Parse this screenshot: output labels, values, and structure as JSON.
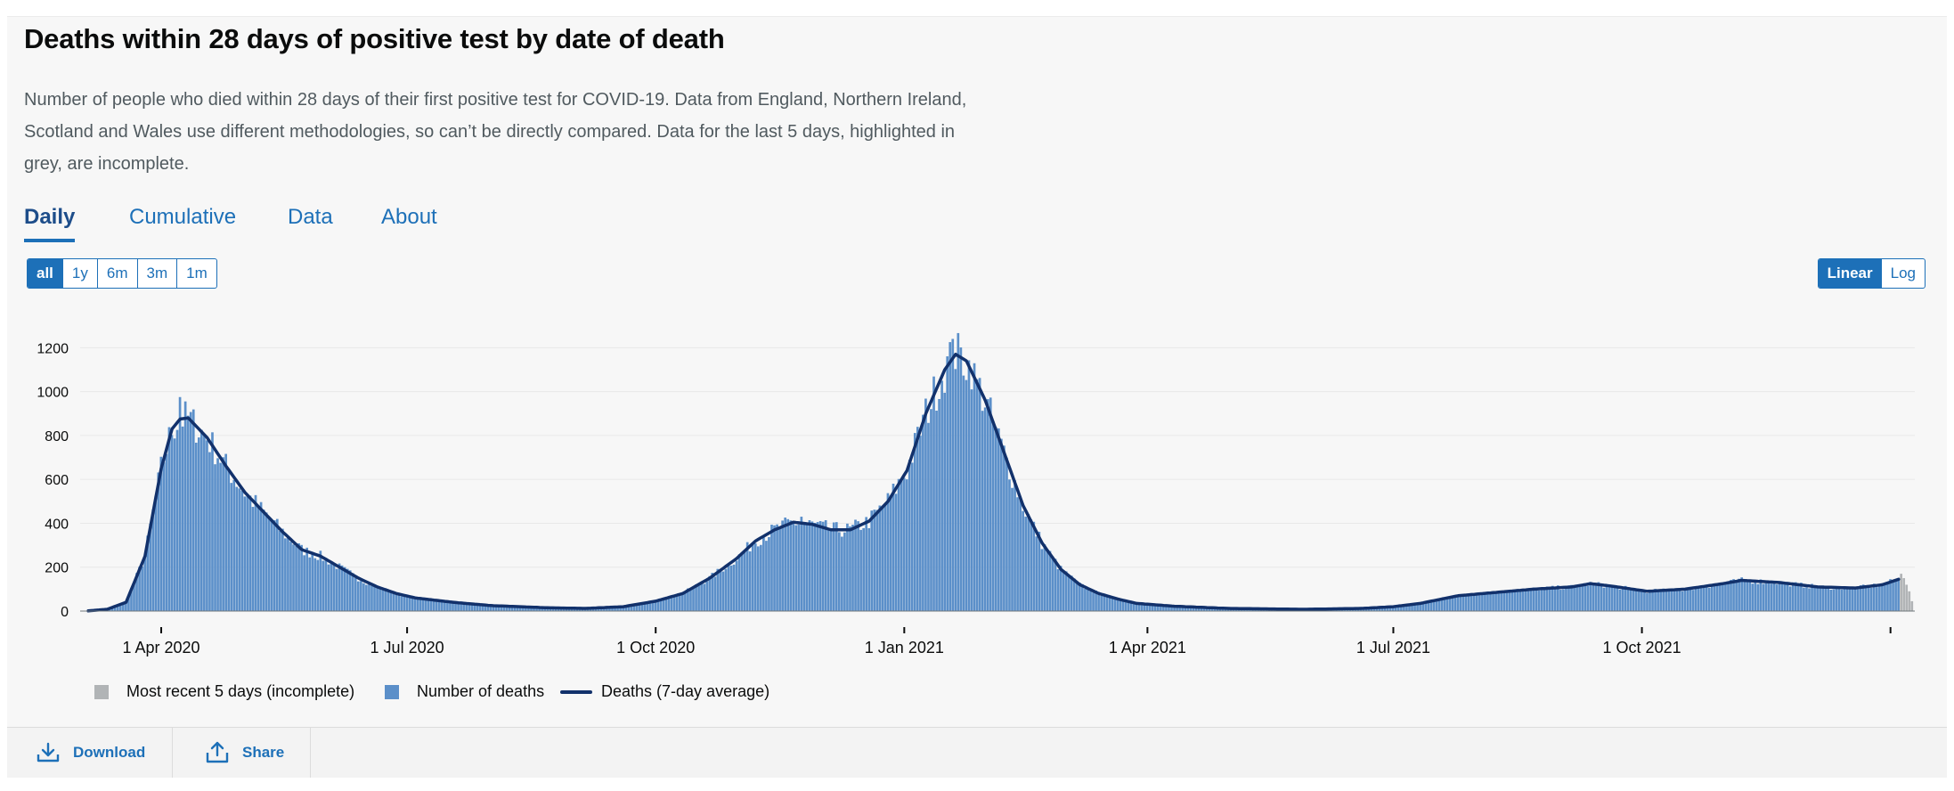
{
  "card": {
    "title": "Deaths within 28 days of positive test by date of death",
    "description": "Number of people who died within 28 days of their first positive test for COVID-19. Data from England, Northern Ireland, Scotland and Wales use different methodologies, so can’t be directly compared. Data for the last 5 days, highlighted in grey, are incomplete."
  },
  "tabs": [
    {
      "label": "Daily",
      "active": true
    },
    {
      "label": "Cumulative",
      "active": false
    },
    {
      "label": "Data",
      "active": false
    },
    {
      "label": "About",
      "active": false
    }
  ],
  "time_range": {
    "options": [
      "all",
      "1y",
      "6m",
      "3m",
      "1m"
    ],
    "selected": "all"
  },
  "scale": {
    "options": [
      "Linear",
      "Log"
    ],
    "selected": "Linear"
  },
  "legend": {
    "incomplete": "Most recent 5 days (incomplete)",
    "deaths": "Number of deaths",
    "average": "Deaths (7-day average)"
  },
  "footer": {
    "download_label": "Download",
    "share_label": "Share"
  },
  "colors": {
    "bars": "#5b8fc9",
    "incomplete_bars": "#b1b4b6",
    "average_line": "#12316b",
    "link": "#1d70b8",
    "gridline": "#e8e8e8"
  },
  "icons": [
    "download-icon",
    "share-icon"
  ],
  "chart_data": {
    "type": "bar",
    "x_axis": {
      "type": "date",
      "min": "2020-03-02",
      "max": "2022-01-10",
      "ticks": [
        {
          "date": "2020-04-01",
          "label": "1 Apr 2020"
        },
        {
          "date": "2020-07-01",
          "label": "1 Jul 2020"
        },
        {
          "date": "2020-10-01",
          "label": "1 Oct 2020"
        },
        {
          "date": "2021-01-01",
          "label": "1 Jan 2021"
        },
        {
          "date": "2021-04-01",
          "label": "1 Apr 2021"
        },
        {
          "date": "2021-07-01",
          "label": "1 Jul 2021"
        },
        {
          "date": "2021-10-01",
          "label": "1 Oct 2021"
        },
        {
          "date": "2022-01-01",
          "label": ""
        }
      ]
    },
    "y_axis": {
      "min": 0,
      "max": 1250,
      "ticks": [
        0,
        200,
        400,
        600,
        800,
        1000,
        1200
      ],
      "scale": "linear"
    },
    "grid": true,
    "legend_position": "bottom-left",
    "series": [
      {
        "name": "Deaths (7-day average)",
        "type": "line",
        "points": [
          [
            "2020-03-05",
            1
          ],
          [
            "2020-03-12",
            8
          ],
          [
            "2020-03-19",
            40
          ],
          [
            "2020-03-26",
            250
          ],
          [
            "2020-04-01",
            650
          ],
          [
            "2020-04-05",
            830
          ],
          [
            "2020-04-08",
            875
          ],
          [
            "2020-04-11",
            880
          ],
          [
            "2020-04-18",
            790
          ],
          [
            "2020-04-25",
            660
          ],
          [
            "2020-05-02",
            540
          ],
          [
            "2020-05-09",
            450
          ],
          [
            "2020-05-16",
            360
          ],
          [
            "2020-05-23",
            280
          ],
          [
            "2020-05-30",
            250
          ],
          [
            "2020-06-06",
            200
          ],
          [
            "2020-06-13",
            150
          ],
          [
            "2020-06-20",
            110
          ],
          [
            "2020-06-27",
            80
          ],
          [
            "2020-07-04",
            60
          ],
          [
            "2020-07-18",
            40
          ],
          [
            "2020-08-01",
            25
          ],
          [
            "2020-08-22",
            15
          ],
          [
            "2020-09-05",
            12
          ],
          [
            "2020-09-19",
            20
          ],
          [
            "2020-10-01",
            45
          ],
          [
            "2020-10-11",
            80
          ],
          [
            "2020-10-21",
            150
          ],
          [
            "2020-10-31",
            240
          ],
          [
            "2020-11-07",
            320
          ],
          [
            "2020-11-14",
            370
          ],
          [
            "2020-11-21",
            405
          ],
          [
            "2020-11-28",
            395
          ],
          [
            "2020-12-05",
            370
          ],
          [
            "2020-12-12",
            370
          ],
          [
            "2020-12-19",
            410
          ],
          [
            "2020-12-26",
            500
          ],
          [
            "2021-01-02",
            640
          ],
          [
            "2021-01-09",
            900
          ],
          [
            "2021-01-16",
            1100
          ],
          [
            "2021-01-20",
            1170
          ],
          [
            "2021-01-24",
            1140
          ],
          [
            "2021-01-31",
            960
          ],
          [
            "2021-02-07",
            720
          ],
          [
            "2021-02-14",
            480
          ],
          [
            "2021-02-21",
            310
          ],
          [
            "2021-02-28",
            190
          ],
          [
            "2021-03-07",
            120
          ],
          [
            "2021-03-14",
            80
          ],
          [
            "2021-03-21",
            55
          ],
          [
            "2021-03-28",
            35
          ],
          [
            "2021-04-11",
            22
          ],
          [
            "2021-05-01",
            12
          ],
          [
            "2021-05-29",
            8
          ],
          [
            "2021-06-19",
            12
          ],
          [
            "2021-07-01",
            20
          ],
          [
            "2021-07-11",
            35
          ],
          [
            "2021-07-25",
            70
          ],
          [
            "2021-08-08",
            85
          ],
          [
            "2021-08-22",
            100
          ],
          [
            "2021-09-05",
            110
          ],
          [
            "2021-09-12",
            125
          ],
          [
            "2021-09-19",
            115
          ],
          [
            "2021-10-03",
            90
          ],
          [
            "2021-10-17",
            100
          ],
          [
            "2021-10-31",
            125
          ],
          [
            "2021-11-07",
            140
          ],
          [
            "2021-11-21",
            130
          ],
          [
            "2021-12-05",
            110
          ],
          [
            "2021-12-19",
            105
          ],
          [
            "2021-12-29",
            120
          ],
          [
            "2022-01-04",
            145
          ]
        ]
      }
    ],
    "bars": {
      "name": "Number of deaths",
      "note": "Daily bars follow the 7-day average with day-to-day variation; notable spikes below",
      "spikes": [
        [
          "2020-04-08",
          975
        ],
        [
          "2020-11-24",
          430
        ],
        [
          "2020-12-01",
          410
        ],
        [
          "2021-01-19",
          1240
        ],
        [
          "2021-01-26",
          1010
        ]
      ]
    },
    "incomplete": {
      "name": "Most recent 5 days (incomplete)",
      "start": "2022-01-05",
      "values": [
        170,
        150,
        120,
        90,
        45
      ]
    }
  }
}
